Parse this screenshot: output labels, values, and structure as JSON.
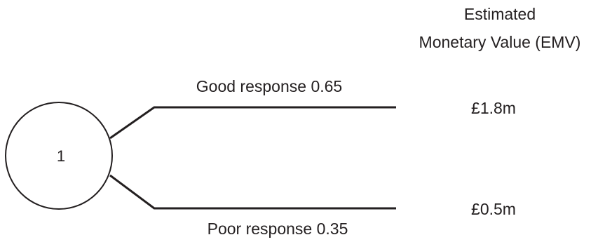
{
  "header": {
    "line1": "Estimated",
    "line2": "Monetary Value (EMV)"
  },
  "node": {
    "label": "1"
  },
  "branches": [
    {
      "outcome": "Good response 0.65",
      "value": "£1.8m"
    },
    {
      "outcome": "Poor response 0.35",
      "value": "£0.5m"
    }
  ]
}
